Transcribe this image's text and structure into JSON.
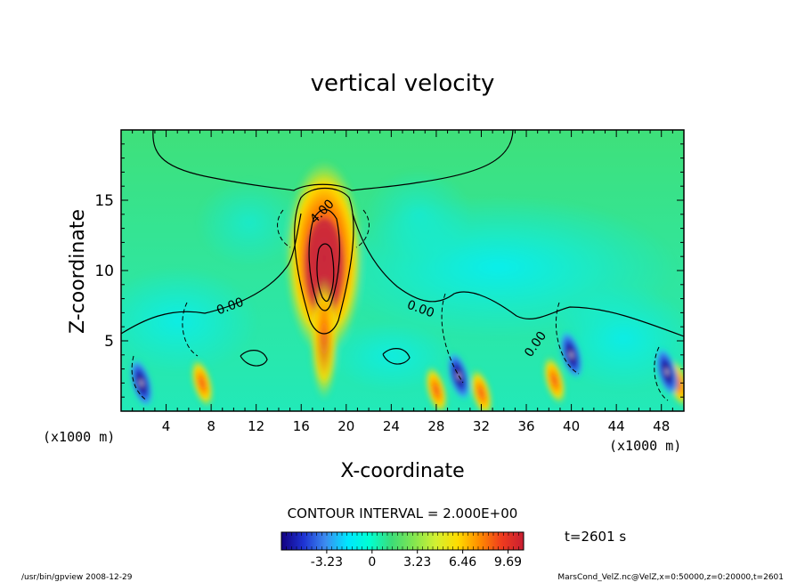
{
  "chart_data": {
    "type": "heatmap",
    "title": "vertical velocity",
    "xlabel": "X-coordinate",
    "ylabel": "Z-coordinate",
    "x_unit_left": "(x1000 m)",
    "x_unit_right": "(x1000 m)",
    "xlim": [
      0,
      50
    ],
    "ylim": [
      0,
      20
    ],
    "x_ticks": [
      4,
      8,
      12,
      16,
      20,
      24,
      28,
      32,
      36,
      40,
      44,
      48
    ],
    "y_ticks": [
      5,
      10,
      15
    ],
    "contour_labels": [
      {
        "text": "4.00",
        "x": 18.1,
        "y": 14.0,
        "angle": -45
      },
      {
        "text": "0.00",
        "x": 9.8,
        "y": 7.2,
        "angle": -20
      },
      {
        "text": "0.00",
        "x": 26.5,
        "y": 7.0,
        "angle": 20
      },
      {
        "text": "0.00",
        "x": 37.1,
        "y": 4.6,
        "angle": -55
      }
    ],
    "contour_interval": "CONTOUR INTERVAL = 2.000E+00",
    "colorbar": {
      "ticks": [
        "-3.23",
        "0",
        "3.23",
        "6.46",
        "9.69"
      ],
      "tick_values": [
        -3.23,
        0,
        3.23,
        6.46,
        9.69
      ],
      "range": [
        -6.46,
        10.8
      ],
      "colors": [
        "#120080",
        "#1e32d2",
        "#3c8cf0",
        "#00e6ff",
        "#00ffd2",
        "#3cdc78",
        "#82e650",
        "#d2f032",
        "#ffdc00",
        "#ff8c00",
        "#f03c1e",
        "#c81e32"
      ]
    },
    "time": "t=2601 s",
    "footer_left": "/usr/bin/gpview   2008-12-29",
    "footer_right": "MarsCond_VelZ.nc@VelZ,x=0:50000,z=0:20000,t=2601",
    "features": [
      {
        "kind": "updraft_core",
        "x": 18.2,
        "z": 11.0,
        "peak": 10.0
      },
      {
        "kind": "updraft",
        "x": 7.2,
        "z": 2.0,
        "peak": 6.0
      },
      {
        "kind": "updraft",
        "x": 28.0,
        "z": 1.5,
        "peak": 6.5
      },
      {
        "kind": "updraft",
        "x": 32.0,
        "z": 1.3,
        "peak": 8.0
      },
      {
        "kind": "updraft",
        "x": 38.5,
        "z": 2.2,
        "peak": 7.0
      },
      {
        "kind": "updraft",
        "x": 49.5,
        "z": 2.0,
        "peak": 8.0
      },
      {
        "kind": "downdraft",
        "x": 1.8,
        "z": 2.0,
        "peak": -6.0
      },
      {
        "kind": "downdraft",
        "x": 30.0,
        "z": 2.5,
        "peak": -6.0
      },
      {
        "kind": "downdraft",
        "x": 40.0,
        "z": 4.0,
        "peak": -6.0
      },
      {
        "kind": "downdraft",
        "x": 48.5,
        "z": 2.8,
        "peak": -6.0
      }
    ]
  }
}
